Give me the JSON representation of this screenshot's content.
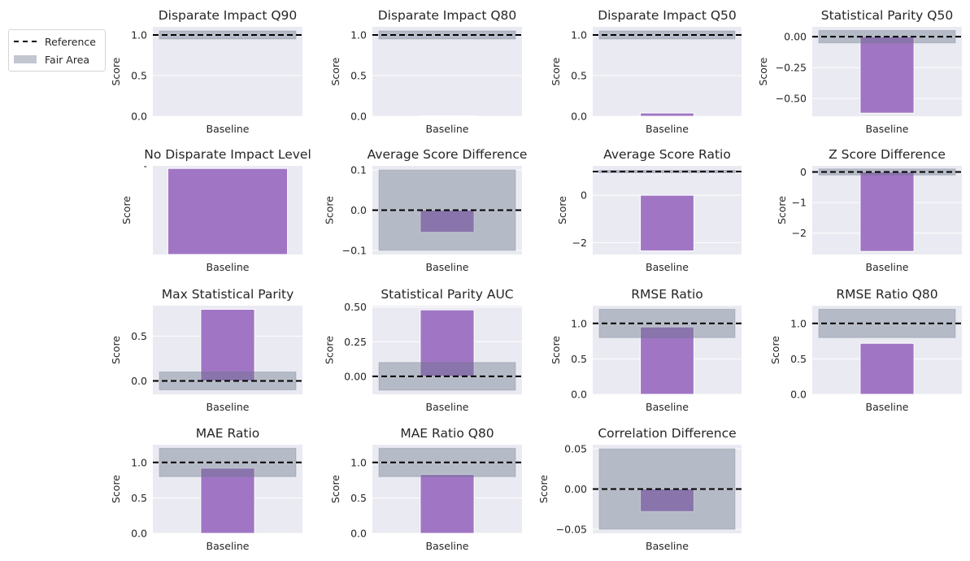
{
  "legend": {
    "placement": "top-left",
    "items": [
      {
        "label": "Reference"
      },
      {
        "label": "Fair Area"
      }
    ]
  },
  "colors": {
    "axes_bg": "#eaeaf2",
    "bar": "#a076c4",
    "fair_area": "#677486",
    "reference": "#000000"
  },
  "chart_data": [
    {
      "type": "bar",
      "title": "Disparate Impact Q90",
      "ylabel": "Score",
      "categories": [
        "Baseline"
      ],
      "values": [
        0.0
      ],
      "reference": 1.0,
      "fair_area": [
        0.95,
        1.05
      ],
      "ylim": [
        0,
        1.1
      ],
      "yticks": [
        0,
        0.5,
        1.0
      ],
      "ytick_labels": [
        "0.0",
        "0.5",
        "1.0"
      ]
    },
    {
      "type": "bar",
      "title": "Disparate Impact Q80",
      "ylabel": "Score",
      "categories": [
        "Baseline"
      ],
      "values": [
        0.005
      ],
      "reference": 1.0,
      "fair_area": [
        0.95,
        1.05
      ],
      "ylim": [
        0,
        1.1
      ],
      "yticks": [
        0,
        0.5,
        1.0
      ],
      "ytick_labels": [
        "0.0",
        "0.5",
        "1.0"
      ]
    },
    {
      "type": "bar",
      "title": "Disparate Impact Q50",
      "ylabel": "Score",
      "categories": [
        "Baseline"
      ],
      "values": [
        0.04
      ],
      "reference": 1.0,
      "fair_area": [
        0.95,
        1.05
      ],
      "ylim": [
        0,
        1.1
      ],
      "yticks": [
        0,
        0.5,
        1.0
      ],
      "ytick_labels": [
        "0.0",
        "0.5",
        "1.0"
      ]
    },
    {
      "type": "bar",
      "title": "Statistical Parity Q50",
      "ylabel": "Score",
      "categories": [
        "Baseline"
      ],
      "values": [
        -0.62
      ],
      "reference": 0.0,
      "fair_area": [
        -0.05,
        0.05
      ],
      "ylim": [
        -0.645,
        0.08
      ],
      "yticks": [
        0,
        -0.25,
        -0.5
      ],
      "ytick_labels": [
        "0.00",
        "−0.25",
        "−0.50"
      ]
    },
    {
      "type": "bar",
      "title": "No Disparate Impact Level",
      "ylabel": "Score",
      "categories": [
        "Baseline"
      ],
      "values": [
        1
      ],
      "ylim": [
        0,
        1.03
      ],
      "yticks": [
        1.03
      ],
      "ytick_labels": [
        "-"
      ],
      "wide": true
    },
    {
      "type": "bar",
      "title": "Average Score Difference",
      "ylabel": "Score",
      "categories": [
        "Baseline"
      ],
      "values": [
        -0.055
      ],
      "reference": 0.0,
      "fair_area": [
        -0.1,
        0.1
      ],
      "ylim": [
        -0.11,
        0.11
      ],
      "yticks": [
        -0.1,
        0,
        0.1
      ],
      "ytick_labels": [
        "−0.1",
        "0.0",
        "0.1"
      ]
    },
    {
      "type": "bar",
      "title": "Average Score Ratio",
      "ylabel": "Score",
      "categories": [
        "Baseline"
      ],
      "values": [
        -2.35
      ],
      "reference": 1.0,
      "fair_area": [
        0.95,
        1.05
      ],
      "ylim": [
        -2.5,
        1.24
      ],
      "yticks": [
        0,
        -2
      ],
      "ytick_labels": [
        "0",
        "−2"
      ]
    },
    {
      "type": "bar",
      "title": "Z Score Difference",
      "ylabel": "Score",
      "categories": [
        "Baseline"
      ],
      "values": [
        -2.6
      ],
      "reference": 0.0,
      "fair_area": [
        -0.1,
        0.1
      ],
      "ylim": [
        -2.7,
        0.2
      ],
      "yticks": [
        0,
        -1,
        -2
      ],
      "ytick_labels": [
        "0",
        "−1",
        "−2"
      ]
    },
    {
      "type": "bar",
      "title": "Max Statistical Parity",
      "ylabel": "Score",
      "categories": [
        "Baseline"
      ],
      "values": [
        0.8
      ],
      "reference": 0.0,
      "fair_area": [
        -0.1,
        0.1
      ],
      "ylim": [
        -0.15,
        0.84
      ],
      "yticks": [
        0,
        0.5
      ],
      "ytick_labels": [
        "0.0",
        "0.5"
      ]
    },
    {
      "type": "bar",
      "title": "Statistical Parity AUC",
      "ylabel": "Score",
      "categories": [
        "Baseline"
      ],
      "values": [
        0.48
      ],
      "reference": 0.0,
      "fair_area": [
        -0.1,
        0.1
      ],
      "ylim": [
        -0.13,
        0.51
      ],
      "yticks": [
        0,
        0.25,
        0.5
      ],
      "ytick_labels": [
        "0.00",
        "0.25",
        "0.50"
      ]
    },
    {
      "type": "bar",
      "title": "RMSE Ratio",
      "ylabel": "Score",
      "categories": [
        "Baseline"
      ],
      "values": [
        0.95
      ],
      "reference": 1.0,
      "fair_area": [
        0.8,
        1.2
      ],
      "ylim": [
        0,
        1.25
      ],
      "yticks": [
        0,
        0.5,
        1.0
      ],
      "ytick_labels": [
        "0.0",
        "0.5",
        "1.0"
      ]
    },
    {
      "type": "bar",
      "title": "RMSE Ratio Q80",
      "ylabel": "Score",
      "categories": [
        "Baseline"
      ],
      "values": [
        0.72
      ],
      "reference": 1.0,
      "fair_area": [
        0.8,
        1.2
      ],
      "ylim": [
        0,
        1.25
      ],
      "yticks": [
        0,
        0.5,
        1.0
      ],
      "ytick_labels": [
        "0.0",
        "0.5",
        "1.0"
      ]
    },
    {
      "type": "bar",
      "title": "MAE Ratio",
      "ylabel": "Score",
      "categories": [
        "Baseline"
      ],
      "values": [
        0.92
      ],
      "reference": 1.0,
      "fair_area": [
        0.8,
        1.2
      ],
      "ylim": [
        0,
        1.25
      ],
      "yticks": [
        0,
        0.5,
        1.0
      ],
      "ytick_labels": [
        "0.0",
        "0.5",
        "1.0"
      ]
    },
    {
      "type": "bar",
      "title": "MAE Ratio Q80",
      "ylabel": "Score",
      "categories": [
        "Baseline"
      ],
      "values": [
        0.83
      ],
      "reference": 1.0,
      "fair_area": [
        0.8,
        1.2
      ],
      "ylim": [
        0,
        1.25
      ],
      "yticks": [
        0,
        0.5,
        1.0
      ],
      "ytick_labels": [
        "0.0",
        "0.5",
        "1.0"
      ]
    },
    {
      "type": "bar",
      "title": "Correlation Difference",
      "ylabel": "Score",
      "categories": [
        "Baseline"
      ],
      "values": [
        -0.028
      ],
      "reference": 0.0,
      "fair_area": [
        -0.05,
        0.05
      ],
      "ylim": [
        -0.055,
        0.055
      ],
      "yticks": [
        -0.05,
        0,
        0.05
      ],
      "ytick_labels": [
        "−0.05",
        "0.00",
        "0.05"
      ]
    }
  ]
}
